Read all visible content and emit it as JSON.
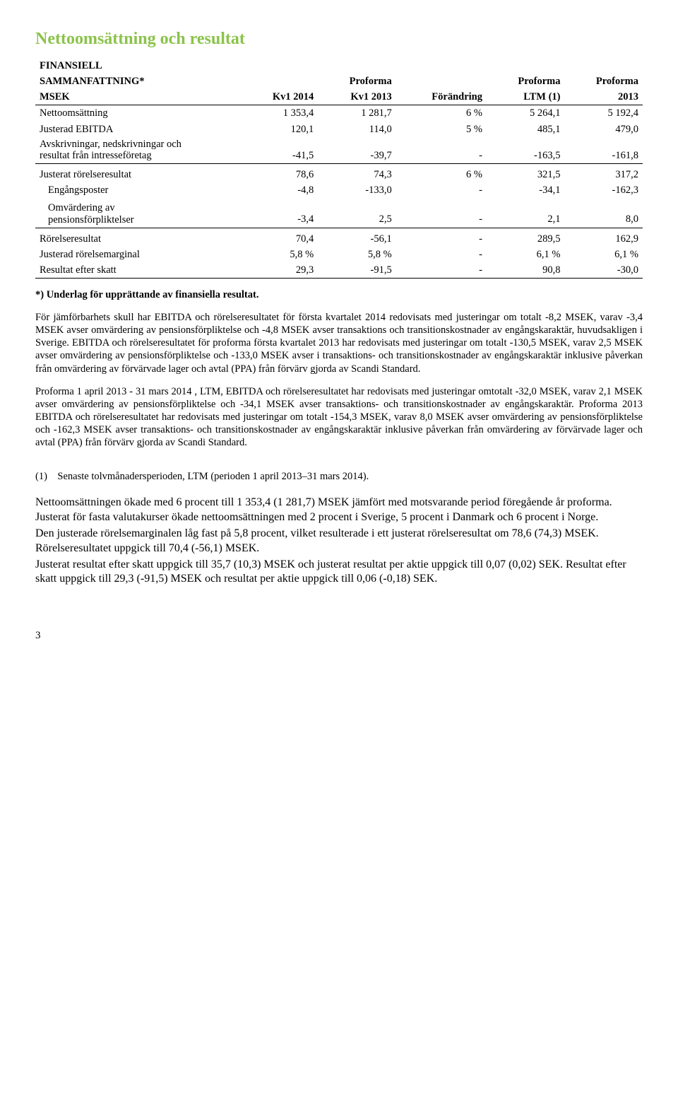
{
  "title": "Nettoomsättning och resultat",
  "table": {
    "head_l1": [
      "FINANSIELL",
      "",
      "",
      "",
      "",
      ""
    ],
    "head_l2": [
      "SAMMANFATTNING*",
      "",
      "Proforma",
      "",
      "Proforma",
      "Proforma"
    ],
    "head_l3": [
      "MSEK",
      "Kv1 2014",
      "Kv1 2013",
      "Förändring",
      "LTM (1)",
      "2013"
    ],
    "rows": [
      {
        "label": "Nettoomsättning",
        "c": [
          "1 353,4",
          "1 281,7",
          "6 %",
          "5 264,1",
          "5 192,4"
        ]
      },
      {
        "label": "Justerad EBITDA",
        "c": [
          "120,1",
          "114,0",
          "5 %",
          "485,1",
          "479,0"
        ]
      },
      {
        "multiline": true,
        "label1": "Avskrivningar, nedskrivningar och",
        "label2": "resultat från intresseföretag",
        "c": [
          "-41,5",
          "-39,7",
          "-",
          "-163,5",
          "-161,8"
        ],
        "underline": true
      },
      {
        "label": "Justerat rörelseresultat",
        "c": [
          "78,6",
          "74,3",
          "6 %",
          "321,5",
          "317,2"
        ],
        "gap": true
      },
      {
        "label": "Engångsposter",
        "c": [
          "-4,8",
          "-133,0",
          "-",
          "-34,1",
          "-162,3"
        ],
        "indent": true
      },
      {
        "multiline": true,
        "label1": "Omvärdering av",
        "label2": "pensionsförpliktelser",
        "c": [
          "-3,4",
          "2,5",
          "-",
          "2,1",
          "8,0"
        ],
        "indent": true,
        "underline": true,
        "gap": true
      },
      {
        "label": "Rörelseresultat",
        "c": [
          "70,4",
          "-56,1",
          "-",
          "289,5",
          "162,9"
        ],
        "gap": true
      },
      {
        "label": "Justerad rörelsemarginal",
        "c": [
          "5,8 %",
          "5,8 %",
          "-",
          "6,1 %",
          "6,1 %"
        ]
      },
      {
        "label": "Resultat efter skatt",
        "c": [
          "29,3",
          "-91,5",
          "-",
          "90,8",
          "-30,0"
        ],
        "underline": true
      }
    ]
  },
  "p_bold": "*) Underlag för upprättande av finansiella resultat.",
  "p1": "För jämförbarhets skull har EBITDA och rörelseresultatet för första kvartalet 2014 redovisats med justeringar om totalt -8,2 MSEK, varav -3,4 MSEK avser omvärdering av pensionsförpliktelse och -4,8 MSEK avser transaktions och transitionskostnader av engångskaraktär, huvudsakligen i Sverige. EBITDA och rörelseresultatet för proforma första kvartalet 2013 har redovisats med justeringar om totalt -130,5 MSEK, varav 2,5 MSEK avser omvärdering av pensionsförpliktelse och -133,0 MSEK avser i transaktions- och transitionskostnader av engångskaraktär inklusive påverkan från omvärdering av förvärvade lager och avtal (PPA) från förvärv gjorda av Scandi Standard.",
  "p2": "Proforma 1 april 2013 - 31 mars 2014 , LTM, EBITDA och rörelseresultatet har redovisats med justeringar omtotalt -32,0 MSEK, varav 2,1 MSEK avser omvärdering av pensionsförpliktelse och -34,1 MSEK avser transaktions- och transitionskostnader av engångskaraktär. Proforma 2013 EBITDA och rörelseresultatet har redovisats med justeringar om totalt -154,3 MSEK, varav 8,0 MSEK avser omvärdering av pensionsförpliktelse och -162,3 MSEK avser transaktions- och transitionskostnader av engångskaraktär inklusive påverkan från omvärdering av förvärvade lager och avtal (PPA) från förvärv gjorda av Scandi Standard.",
  "footnote": "(1) Senaste tolvmånadersperioden, LTM (perioden 1 april 2013–31 mars 2014).",
  "body1": "Nettoomsättningen ökade med 6 procent till 1 353,4 (1 281,7) MSEK jämfört med motsvarande period föregående år proforma. Justerat för fasta valutakurser ökade nettoomsättningen med 2 procent i Sverige, 5 procent i Danmark och 6 procent i Norge.",
  "body2": "Den justerade rörelsemarginalen låg fast på 5,8 procent, vilket resulterade i ett justerat rörelseresultat om 78,6 (74,3) MSEK. Rörelseresultatet uppgick till 70,4 (-56,1) MSEK.",
  "body3": "Justerat resultat efter skatt uppgick till 35,7 (10,3) MSEK och justerat resultat per aktie uppgick till 0,07 (0,02) SEK. Resultat efter skatt uppgick till 29,3 (-91,5) MSEK och resultat per aktie uppgick till 0,06 (-0,18) SEK.",
  "pagenum": "3"
}
